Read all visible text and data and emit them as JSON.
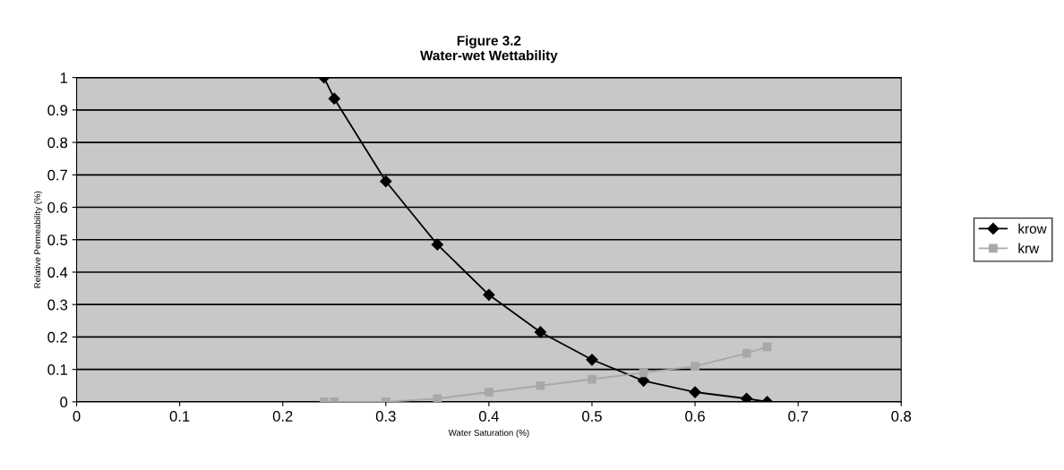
{
  "chart_data": {
    "type": "line",
    "title": "Figure 3.2\nWater-wet Wettability",
    "xlabel": "Water Saturation (%)",
    "ylabel": "Relative Permeability (%)",
    "xlim": [
      0,
      0.8
    ],
    "xticks": [
      0,
      0.1,
      0.2,
      0.3,
      0.4,
      0.5,
      0.6,
      0.7,
      0.8
    ],
    "ylim": [
      0,
      1
    ],
    "yticks": [
      0,
      0.1,
      0.2,
      0.3,
      0.4,
      0.5,
      0.6,
      0.7,
      0.8,
      0.9,
      1
    ],
    "grid": "y",
    "legend": "right",
    "series": [
      {
        "name": "krow",
        "color": "#000000",
        "marker": "diamond",
        "x": [
          0.24,
          0.25,
          0.3,
          0.35,
          0.4,
          0.45,
          0.5,
          0.55,
          0.6,
          0.65,
          0.67
        ],
        "values": [
          1,
          0.935,
          0.68,
          0.485,
          0.33,
          0.215,
          0.13,
          0.065,
          0.03,
          0.01,
          0
        ]
      },
      {
        "name": "krw",
        "color": "#a8a8a8",
        "marker": "square",
        "x": [
          0.24,
          0.25,
          0.3,
          0.35,
          0.4,
          0.45,
          0.5,
          0.55,
          0.6,
          0.65,
          0.67
        ],
        "values": [
          0,
          0,
          0,
          0.01,
          0.03,
          0.05,
          0.07,
          0.09,
          0.11,
          0.15,
          0.17
        ]
      }
    ]
  }
}
